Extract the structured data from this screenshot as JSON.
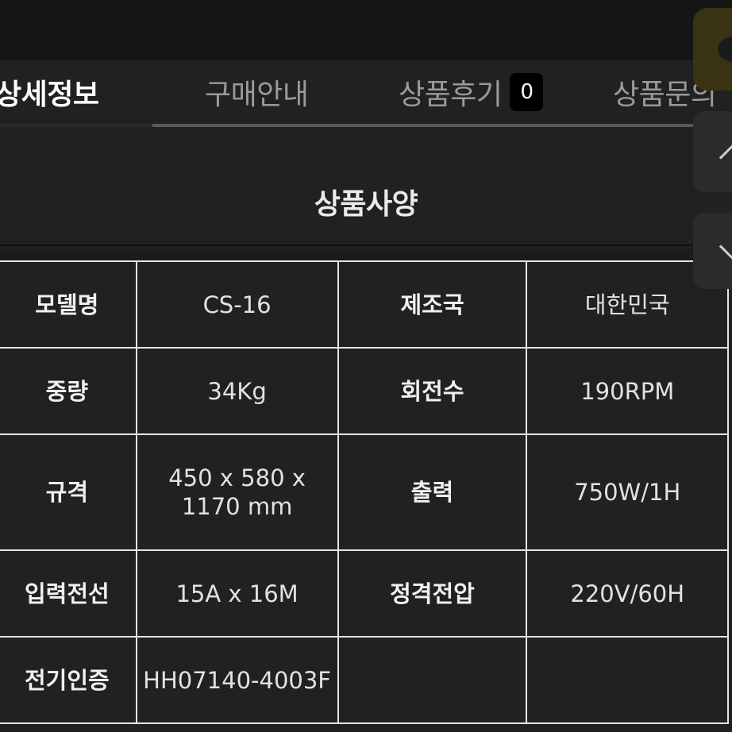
{
  "tabs": [
    {
      "label": "상세정보",
      "active": true
    },
    {
      "label": "구매안내",
      "active": false
    },
    {
      "label": "상품후기",
      "active": false,
      "badge": "0"
    },
    {
      "label": "상품문의",
      "active": false
    }
  ],
  "section": {
    "title": "상품사양"
  },
  "spec_table": {
    "rows": [
      {
        "label1": "모델명",
        "value1": "CS-16",
        "label2": "제조국",
        "value2": "대한민국"
      },
      {
        "label1": "중량",
        "value1": "34Kg",
        "label2": "회전수",
        "value2": "190RPM"
      },
      {
        "label1": "규격",
        "value1": "450 x 580 x 1170 mm",
        "label2": "출력",
        "value2": "750W/1H"
      },
      {
        "label1": "입력전선",
        "value1": "15A x 16M",
        "label2": "정격전압",
        "value2": "220V/60H"
      },
      {
        "label1": "전기인증",
        "value1": "HH07140-4003F",
        "label2": "",
        "value2": ""
      }
    ]
  },
  "floating": {
    "chat_icon": "chat-bubble-icon",
    "up_icon": "chevron-up-icon",
    "down_icon": "chevron-down-icon"
  },
  "colors": {
    "background": "#212121",
    "topbar": "#151515",
    "chat_button": "#3a3313"
  }
}
